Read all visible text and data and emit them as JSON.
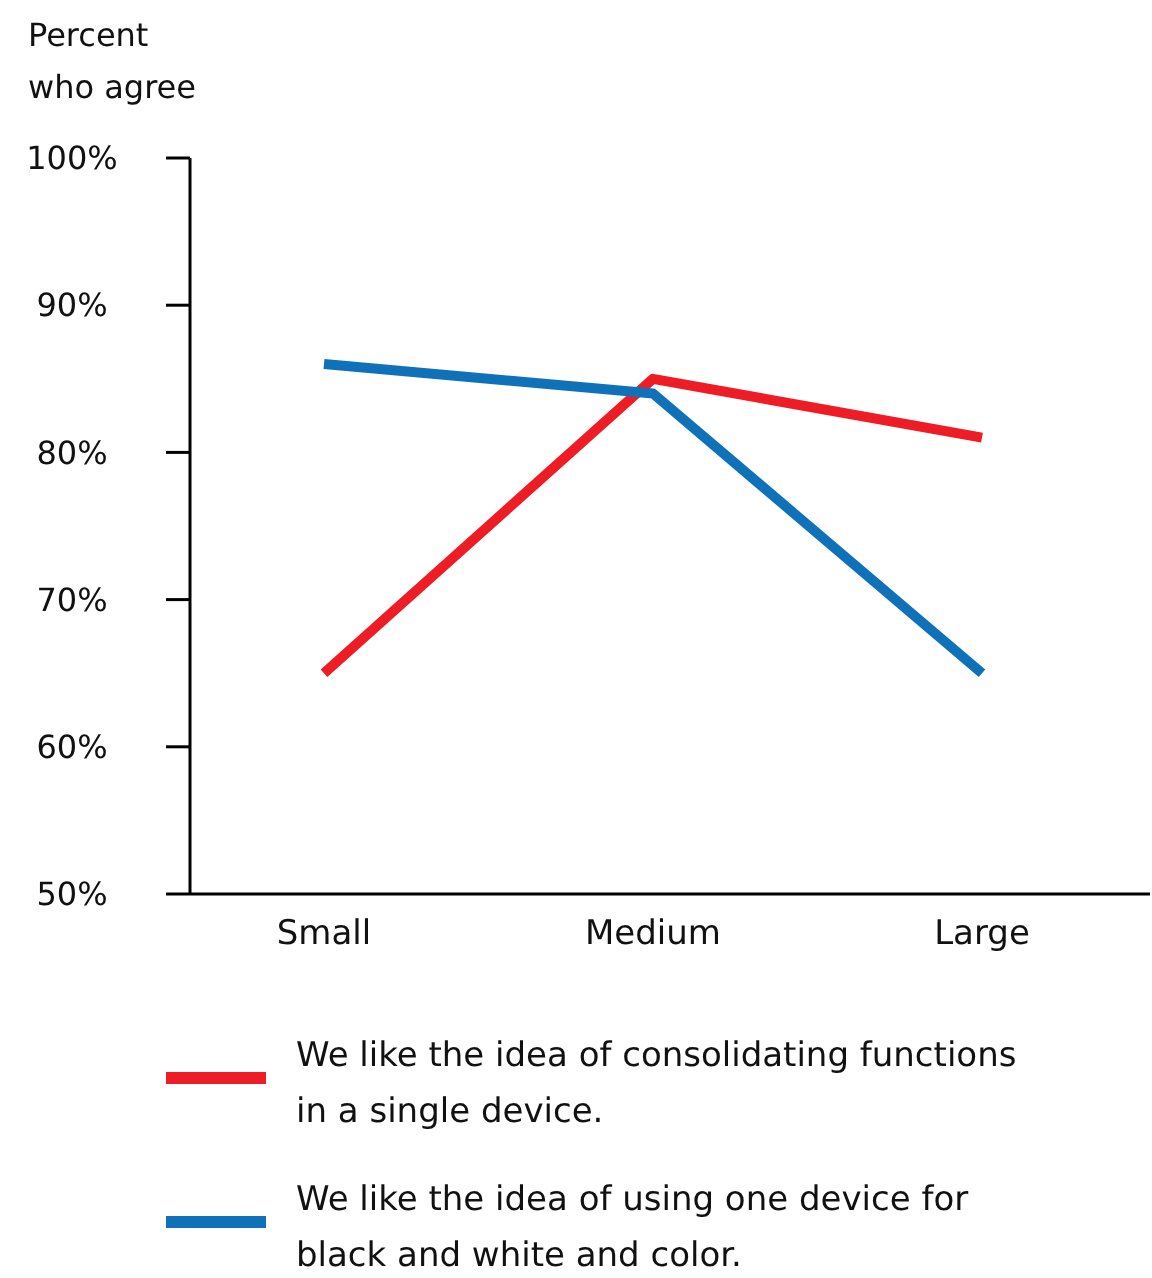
{
  "chart_data": {
    "type": "line",
    "ylabel": "Percent who agree",
    "categories": [
      "Small",
      "Medium",
      "Large"
    ],
    "series": [
      {
        "name": "We like the idea of consolidating functions in a single device.",
        "color": "#ee1c25",
        "values": [
          65,
          85,
          81
        ]
      },
      {
        "name": "We like the idea of using one device for black and white and color.",
        "color": "#0f72b8",
        "values": [
          86,
          84,
          65
        ]
      }
    ],
    "ylim": [
      50,
      100
    ],
    "yticks": [
      {
        "value": 50,
        "label": "50%"
      },
      {
        "value": 60,
        "label": "60%"
      },
      {
        "value": 70,
        "label": "70%"
      },
      {
        "value": 80,
        "label": "80%"
      },
      {
        "value": 90,
        "label": "90%"
      },
      {
        "value": 100,
        "label": "100%"
      }
    ],
    "grid": false,
    "legend": "bottom",
    "marker": "none",
    "line_style": "solid"
  }
}
